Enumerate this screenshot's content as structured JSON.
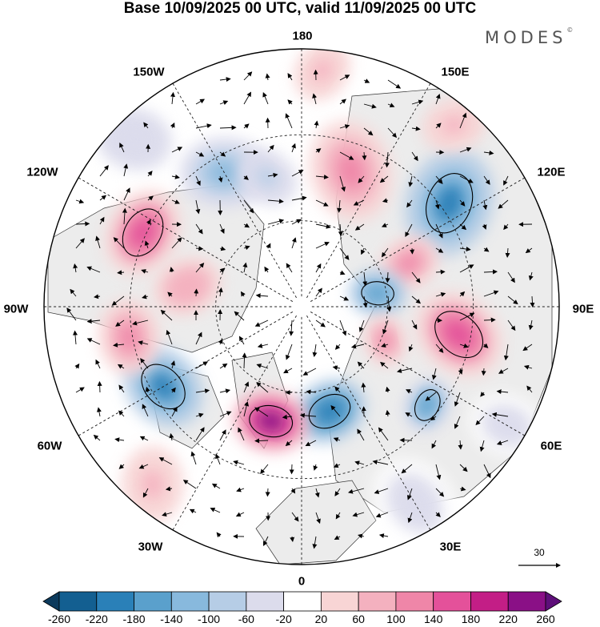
{
  "title": "Base 10/09/2025 00 UTC, valid 11/09/2025 00 UTC",
  "brand": {
    "name": "MODES",
    "mark": "©"
  },
  "lon_labels": {
    "n180": "180",
    "w150": "150W",
    "e150": "150E",
    "w120": "120W",
    "e120": "120E",
    "w90": "90W",
    "e90": "90E",
    "w60": "60W",
    "e60": "60E",
    "w30": "30W",
    "e30": "30E",
    "n0": "0"
  },
  "vector_scale": {
    "label": "30"
  },
  "colorbar": {
    "ticks": [
      "-260",
      "-220",
      "-180",
      "-140",
      "-100",
      "-60",
      "-20",
      "20",
      "60",
      "100",
      "140",
      "180",
      "220",
      "260"
    ],
    "colors": [
      "#0c3a5c",
      "#135f91",
      "#2a80b8",
      "#5aa0cc",
      "#88b9dd",
      "#b6cde6",
      "#dcdcec",
      "#ffffff",
      "#f8d5d5",
      "#f4b1bf",
      "#ef86a8",
      "#e4519a",
      "#c31e86",
      "#8a1086",
      "#5e0f7a"
    ]
  },
  "colors": {
    "land": "#ececec",
    "coast": "#333333",
    "grid": "#222222",
    "vector": "#000000"
  },
  "anomalies": [
    {
      "lon": 210,
      "r": 0.6,
      "v": -120,
      "size": 0.14
    },
    {
      "lon": 195,
      "r": 0.52,
      "v": -80,
      "size": 0.1
    },
    {
      "lon": 160,
      "r": 0.56,
      "v": 120,
      "size": 0.16
    },
    {
      "lon": 125,
      "r": 0.7,
      "v": -200,
      "size": 0.17
    },
    {
      "lon": 112,
      "r": 0.45,
      "v": 100,
      "size": 0.1
    },
    {
      "lon": 100,
      "r": 0.3,
      "v": -180,
      "size": 0.09
    },
    {
      "lon": 80,
      "r": 0.62,
      "v": 150,
      "size": 0.15
    },
    {
      "lon": 68,
      "r": 0.35,
      "v": 110,
      "size": 0.08
    },
    {
      "lon": 52,
      "r": 0.62,
      "v": -160,
      "size": 0.09
    },
    {
      "lon": 15,
      "r": 0.42,
      "v": -220,
      "size": 0.12
    },
    {
      "lon": 345,
      "r": 0.46,
      "v": 240,
      "size": 0.12
    },
    {
      "lon": 300,
      "r": 0.62,
      "v": -200,
      "size": 0.14
    },
    {
      "lon": 280,
      "r": 0.68,
      "v": 120,
      "size": 0.12
    },
    {
      "lon": 245,
      "r": 0.68,
      "v": 150,
      "size": 0.14
    },
    {
      "lon": 260,
      "r": 0.45,
      "v": 90,
      "size": 0.11
    },
    {
      "lon": 225,
      "r": 0.92,
      "v": -60,
      "size": 0.12
    },
    {
      "lon": 30,
      "r": 0.88,
      "v": -40,
      "size": 0.15
    },
    {
      "lon": 320,
      "r": 0.9,
      "v": 60,
      "size": 0.12
    },
    {
      "lon": 175,
      "r": 0.92,
      "v": 70,
      "size": 0.1
    },
    {
      "lon": 140,
      "r": 0.92,
      "v": 80,
      "size": 0.1
    },
    {
      "lon": 60,
      "r": 0.92,
      "v": -30,
      "size": 0.12
    }
  ]
}
